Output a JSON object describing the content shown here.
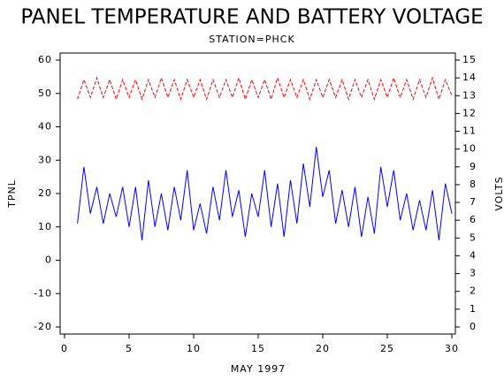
{
  "chart_data": {
    "type": "line",
    "title": "PANEL TEMPERATURE AND BATTERY VOLTAGE",
    "subtitle": "STATION=PHCK",
    "x_label": "MAY 1997",
    "y_label": "TPNL",
    "y2_label": "VOLTS",
    "xlim": [
      0,
      30
    ],
    "xticks": [
      0,
      5,
      10,
      15,
      20,
      25,
      30
    ],
    "ylim": [
      -20,
      60
    ],
    "yticks": [
      -20,
      -10,
      0,
      10,
      20,
      30,
      40,
      50,
      60
    ],
    "y2lim": [
      0,
      15
    ],
    "y2ticks": [
      0,
      1,
      2,
      3,
      4,
      5,
      6,
      7,
      8,
      9,
      10,
      11,
      12,
      13,
      14,
      15
    ],
    "x": [
      1.0,
      1.5,
      2.0,
      2.5,
      3.0,
      3.5,
      4.0,
      4.5,
      5.0,
      5.5,
      6.0,
      6.5,
      7.0,
      7.5,
      8.0,
      8.5,
      9.0,
      9.5,
      10.0,
      10.5,
      11.0,
      11.5,
      12.0,
      12.5,
      13.0,
      13.5,
      14.0,
      14.5,
      15.0,
      15.5,
      16.0,
      16.5,
      17.0,
      17.5,
      18.0,
      18.5,
      19.0,
      19.5,
      20.0,
      20.5,
      21.0,
      21.5,
      22.0,
      22.5,
      23.0,
      23.5,
      24.0,
      24.5,
      25.0,
      25.5,
      26.0,
      26.5,
      27.0,
      27.5,
      28.0,
      28.5,
      29.0,
      29.5,
      30.0
    ],
    "series": [
      {
        "color": "#0000ff",
        "line_style": "solid",
        "axis": "y",
        "values": [
          11,
          28,
          14,
          22,
          11,
          20,
          13,
          22,
          10,
          22,
          6,
          24,
          10,
          20,
          9,
          22,
          12,
          27,
          9,
          17,
          8,
          22,
          12,
          27,
          13,
          21,
          7,
          20,
          13,
          27,
          10,
          23,
          7,
          24,
          11,
          29,
          16,
          34,
          19,
          27,
          11,
          21,
          10,
          22,
          7,
          19,
          8,
          28,
          16,
          27,
          12,
          20,
          9,
          18,
          9,
          21,
          6,
          23,
          14
        ]
      },
      {
        "color": "#ff0000",
        "line_style": "dashed",
        "axis": "y2",
        "values": [
          12.8,
          13.9,
          12.9,
          14.0,
          12.9,
          13.9,
          12.8,
          13.9,
          12.9,
          13.9,
          12.8,
          13.9,
          12.9,
          14.0,
          12.9,
          13.9,
          12.8,
          13.9,
          12.9,
          13.9,
          12.8,
          13.9,
          12.9,
          13.9,
          12.9,
          14.0,
          12.8,
          13.9,
          12.9,
          13.9,
          12.8,
          14.0,
          12.9,
          13.9,
          12.9,
          13.9,
          12.8,
          13.9,
          12.9,
          13.9,
          12.9,
          13.9,
          12.8,
          13.9,
          12.9,
          13.9,
          12.8,
          13.9,
          12.9,
          14.0,
          12.9,
          13.9,
          12.8,
          13.9,
          12.9,
          14.0,
          12.8,
          13.9,
          13.0
        ]
      }
    ]
  }
}
